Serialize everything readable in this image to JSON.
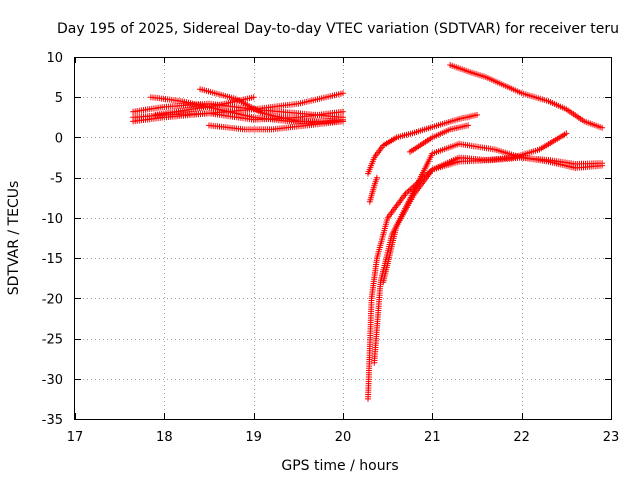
{
  "chart_data": {
    "type": "scatter",
    "title": "Day 195 of 2025, Sidereal Day-to-day VTEC variation (SDTVAR) for receiver teru",
    "xlabel": "GPS time / hours",
    "ylabel": "SDTVAR / TECUs",
    "xlim": [
      17,
      23
    ],
    "ylim": [
      -35,
      10
    ],
    "xticks": [
      17,
      18,
      19,
      20,
      21,
      22,
      23
    ],
    "yticks": [
      10,
      5,
      0,
      -5,
      -10,
      -15,
      -20,
      -25,
      -30,
      -35
    ],
    "xtick_labels": [
      "17",
      "18",
      "19",
      "20",
      "21",
      "22",
      "23"
    ],
    "ytick_labels": [
      "10",
      "5",
      "0",
      "-5",
      "-10",
      "-15",
      "-20",
      "-25",
      "-30",
      "-35"
    ],
    "grid": true,
    "marker": "+",
    "marker_color": "#ff0000",
    "series": [
      {
        "name": "s1",
        "x": [
          17.65,
          18.0,
          18.5,
          19.0,
          19.5,
          20.0
        ],
        "y": [
          3.2,
          3.8,
          4.2,
          3.5,
          3.0,
          2.5
        ]
      },
      {
        "name": "s2",
        "x": [
          17.65,
          18.0,
          18.5,
          19.0,
          19.5,
          20.0
        ],
        "y": [
          2.5,
          2.8,
          3.0,
          3.5,
          4.2,
          5.5
        ]
      },
      {
        "name": "s3",
        "x": [
          17.65,
          18.0,
          18.5,
          19.0,
          19.5,
          20.0
        ],
        "y": [
          2.0,
          2.5,
          3.0,
          2.2,
          2.5,
          3.2
        ]
      },
      {
        "name": "s4",
        "x": [
          17.85,
          18.2,
          18.6,
          19.0,
          19.4,
          19.8,
          20.0
        ],
        "y": [
          5.0,
          4.5,
          3.5,
          2.5,
          2.0,
          2.0,
          2.2
        ]
      },
      {
        "name": "s5",
        "x": [
          18.4,
          18.8,
          19.1,
          19.5,
          19.8,
          20.0
        ],
        "y": [
          6.0,
          4.8,
          3.0,
          2.0,
          2.0,
          2.0
        ]
      },
      {
        "name": "s6",
        "x": [
          17.9,
          18.3,
          18.6,
          19.0
        ],
        "y": [
          2.8,
          3.5,
          4.0,
          5.0
        ]
      },
      {
        "name": "s7",
        "x": [
          18.5,
          18.9,
          19.2,
          19.6,
          20.0
        ],
        "y": [
          1.5,
          1.0,
          1.0,
          1.5,
          2.0
        ]
      },
      {
        "name": "s8",
        "x": [
          20.28,
          20.35,
          20.45,
          20.6,
          20.8,
          21.0,
          21.3,
          21.5
        ],
        "y": [
          -4.5,
          -2.5,
          -1.0,
          0.0,
          0.6,
          1.3,
          2.3,
          2.8
        ]
      },
      {
        "name": "s9",
        "x": [
          20.28,
          20.32,
          20.38,
          20.5,
          20.7,
          21.0,
          21.3,
          21.7,
          22.0,
          22.3,
          22.6,
          22.9
        ],
        "y": [
          -32.5,
          -20.0,
          -15.0,
          -10.0,
          -7.0,
          -4.0,
          -3.0,
          -2.8,
          -2.5,
          -3.0,
          -3.8,
          -3.5
        ]
      },
      {
        "name": "s10",
        "x": [
          20.35,
          20.42,
          20.55,
          20.8,
          21.0,
          21.3,
          21.6,
          21.9,
          22.2,
          22.5
        ],
        "y": [
          -28.0,
          -18.0,
          -12.0,
          -7.0,
          -4.0,
          -2.5,
          -2.8,
          -2.5,
          -1.5,
          0.5
        ]
      },
      {
        "name": "s11",
        "x": [
          20.45,
          20.6,
          20.8,
          21.0,
          21.3,
          21.7,
          22.0,
          22.3,
          22.6,
          22.9
        ],
        "y": [
          -18.0,
          -11.0,
          -6.5,
          -2.0,
          -0.8,
          -1.5,
          -2.5,
          -2.8,
          -3.3,
          -3.2
        ]
      },
      {
        "name": "s12",
        "x": [
          20.3,
          20.35,
          20.38
        ],
        "y": [
          -8.0,
          -6.0,
          -5.0
        ]
      },
      {
        "name": "s13",
        "x": [
          20.75,
          21.0,
          21.2,
          21.4
        ],
        "y": [
          -1.8,
          0.0,
          1.0,
          1.5
        ]
      },
      {
        "name": "s14",
        "x": [
          21.2,
          21.4,
          21.6,
          21.8,
          22.0,
          22.3,
          22.5,
          22.7,
          22.9
        ],
        "y": [
          9.0,
          8.2,
          7.5,
          6.5,
          5.5,
          4.5,
          3.5,
          2.0,
          1.2
        ]
      }
    ]
  }
}
